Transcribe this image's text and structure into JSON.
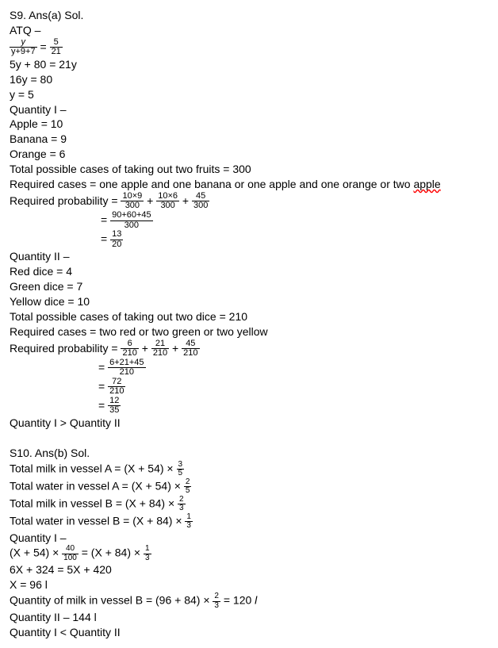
{
  "s9": {
    "header": "S9. Ans(a) Sol.",
    "atq": "ATQ –",
    "eq1_lhs_num": "y",
    "eq1_lhs_den": "y+9+7",
    "eq1_rhs_num": "5",
    "eq1_rhs_den": "21",
    "line2": "5y + 80 = 21y",
    "line3": "16y = 80",
    "line4": "y = 5",
    "q1_label": "Quantity I –",
    "apple": "Apple = 10",
    "banana": "Banana = 9",
    "orange": "Orange = 6",
    "q1_total": "Total possible cases of taking out two fruits = 300",
    "q1_cases_pre": "Required cases = one apple and one banana or one apple and one orange or two ",
    "q1_cases_wavy": "apple",
    "rp_label": "Required probability = ",
    "t1_num": "10×9",
    "t1_den": "300",
    "t2_num": "10×6",
    "t2_den": "300",
    "t3_num": "45",
    "t3_den": "300",
    "sum1_num": "90+60+45",
    "sum1_den": "300",
    "res1_num": "13",
    "res1_den": "20",
    "q2_label": "Quantity II –",
    "red": "Red dice = 4",
    "green": "Green dice = 7",
    "yellow": "Yellow dice = 10",
    "q2_total": "Total possible cases of taking out two dice = 210",
    "q2_cases": "Required cases = two red or two green or two yellow",
    "rp2_pre": " Required probability = ",
    "u1_num": "6",
    "u1_den": "210",
    "u2_num": "21",
    "u2_den": "210",
    "u3_num": "45",
    "u3_den": "210",
    "sum2_num": "6+21+45",
    "sum2_den": "210",
    "mid_num": "72",
    "mid_den": "210",
    "res2_num": "12",
    "res2_den": "35",
    "compare": "Quantity I > Quantity II"
  },
  "s10": {
    "header": "S10.  Ans(b) Sol.",
    "milkA": "Total milk in vessel A = (X + 54) × ",
    "fA_num": "3",
    "fA_den": "5",
    "waterA": "Total water in vessel A = (X + 54) × ",
    "fWA_num": "2",
    "fWA_den": "5",
    "milkB": "Total milk in vessel B = (X + 84) × ",
    "fB_num": "2",
    "fB_den": "3",
    "waterB": "Total water in vessel B = (X + 84) × ",
    "fWB_num": "1",
    "fWB_den": "3",
    "q1": "Quantity I –",
    "eq_lhs": "(X + 54) × ",
    "eq_l_num": "40",
    "eq_l_den": "100",
    "eq_mid": " = (X + 84) × ",
    "eq_r_num": "1",
    "eq_r_den": "3",
    "line2": "6X + 324 = 5X + 420",
    "line3": "X = 96 l",
    "qmB": "Quantity of milk in vessel B = (96 + 84) × ",
    "qmB_num": "2",
    "qmB_den": "3",
    "qmB_post": " = 120 ",
    "litre": "l",
    "q2": "Quantity II – 144 l",
    "compare": "Quantity I < Quantity II"
  }
}
